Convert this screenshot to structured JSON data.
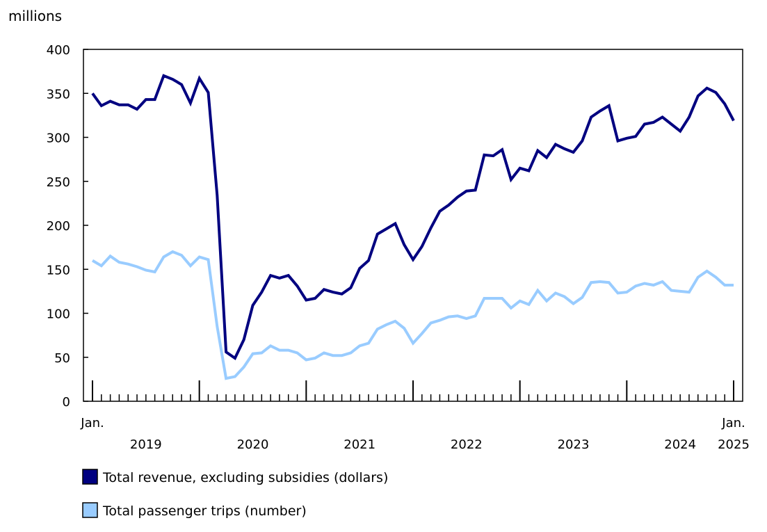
{
  "chart_data": {
    "type": "line",
    "ylabel": "millions",
    "ylim": [
      0,
      400
    ],
    "yticks": [
      0,
      50,
      100,
      150,
      200,
      250,
      300,
      350,
      400
    ],
    "x_start": "2019-01",
    "x_end": "2025-01",
    "x_tick_labels": [
      {
        "month": "Jan.",
        "year": "2019"
      },
      {
        "year": "2020"
      },
      {
        "year": "2021"
      },
      {
        "year": "2022"
      },
      {
        "year": "2023"
      },
      {
        "year": "2024"
      },
      {
        "month": "Jan.",
        "year": "2025"
      }
    ],
    "grid": false,
    "legend_position": "bottom",
    "series": [
      {
        "name": "Total revenue, excluding subsidies (dollars)",
        "color": "#000080",
        "values": [
          350,
          336,
          341,
          337,
          337,
          332,
          343,
          343,
          370,
          366,
          360,
          339,
          367,
          351,
          234,
          56,
          49,
          70,
          109,
          124,
          143,
          140,
          143,
          131,
          115,
          117,
          127,
          124,
          122,
          129,
          151,
          160,
          190,
          196,
          202,
          178,
          161,
          176,
          197,
          216,
          223,
          232,
          239,
          240,
          280,
          279,
          286,
          252,
          265,
          262,
          285,
          277,
          292,
          287,
          283,
          296,
          323,
          330,
          336,
          296,
          299,
          301,
          315,
          317,
          323,
          315,
          307,
          323,
          347,
          356,
          351,
          338,
          319
        ]
      },
      {
        "name": "Total passenger trips (number)",
        "color": "#99CCFF",
        "values": [
          160,
          154,
          165,
          158,
          156,
          153,
          149,
          147,
          164,
          170,
          166,
          154,
          164,
          161,
          85,
          26,
          28,
          39,
          54,
          55,
          63,
          58,
          58,
          55,
          47,
          49,
          55,
          52,
          52,
          55,
          63,
          66,
          82,
          87,
          91,
          83,
          66,
          77,
          89,
          92,
          96,
          97,
          94,
          97,
          117,
          117,
          117,
          106,
          114,
          110,
          126,
          114,
          123,
          119,
          111,
          118,
          135,
          136,
          135,
          123,
          124,
          131,
          134,
          132,
          136,
          126,
          125,
          124,
          141,
          148,
          141,
          132,
          132
        ]
      }
    ]
  }
}
